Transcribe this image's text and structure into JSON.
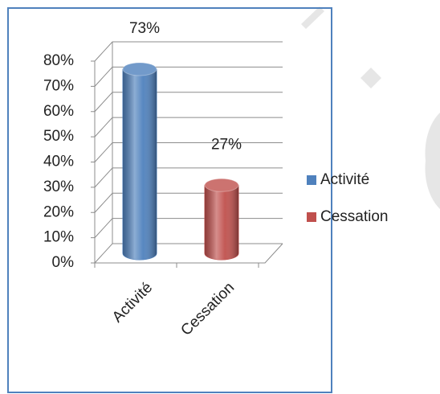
{
  "chart_data": {
    "type": "bar",
    "categories": [
      "Activité",
      "Cessation"
    ],
    "values": [
      73,
      27
    ],
    "value_labels": [
      "73%",
      "27%"
    ],
    "colors": [
      "#4f81bd",
      "#c0504d"
    ],
    "ylim": [
      0,
      80
    ],
    "yticks": [
      {
        "value": 0,
        "label": "0%"
      },
      {
        "value": 10,
        "label": "10%"
      },
      {
        "value": 20,
        "label": "20%"
      },
      {
        "value": 30,
        "label": "30%"
      },
      {
        "value": 40,
        "label": "40%"
      },
      {
        "value": 50,
        "label": "50%"
      },
      {
        "value": 60,
        "label": "60%"
      },
      {
        "value": 70,
        "label": "70%"
      },
      {
        "value": 80,
        "label": "80%"
      }
    ],
    "grid": true,
    "legend": "right"
  }
}
